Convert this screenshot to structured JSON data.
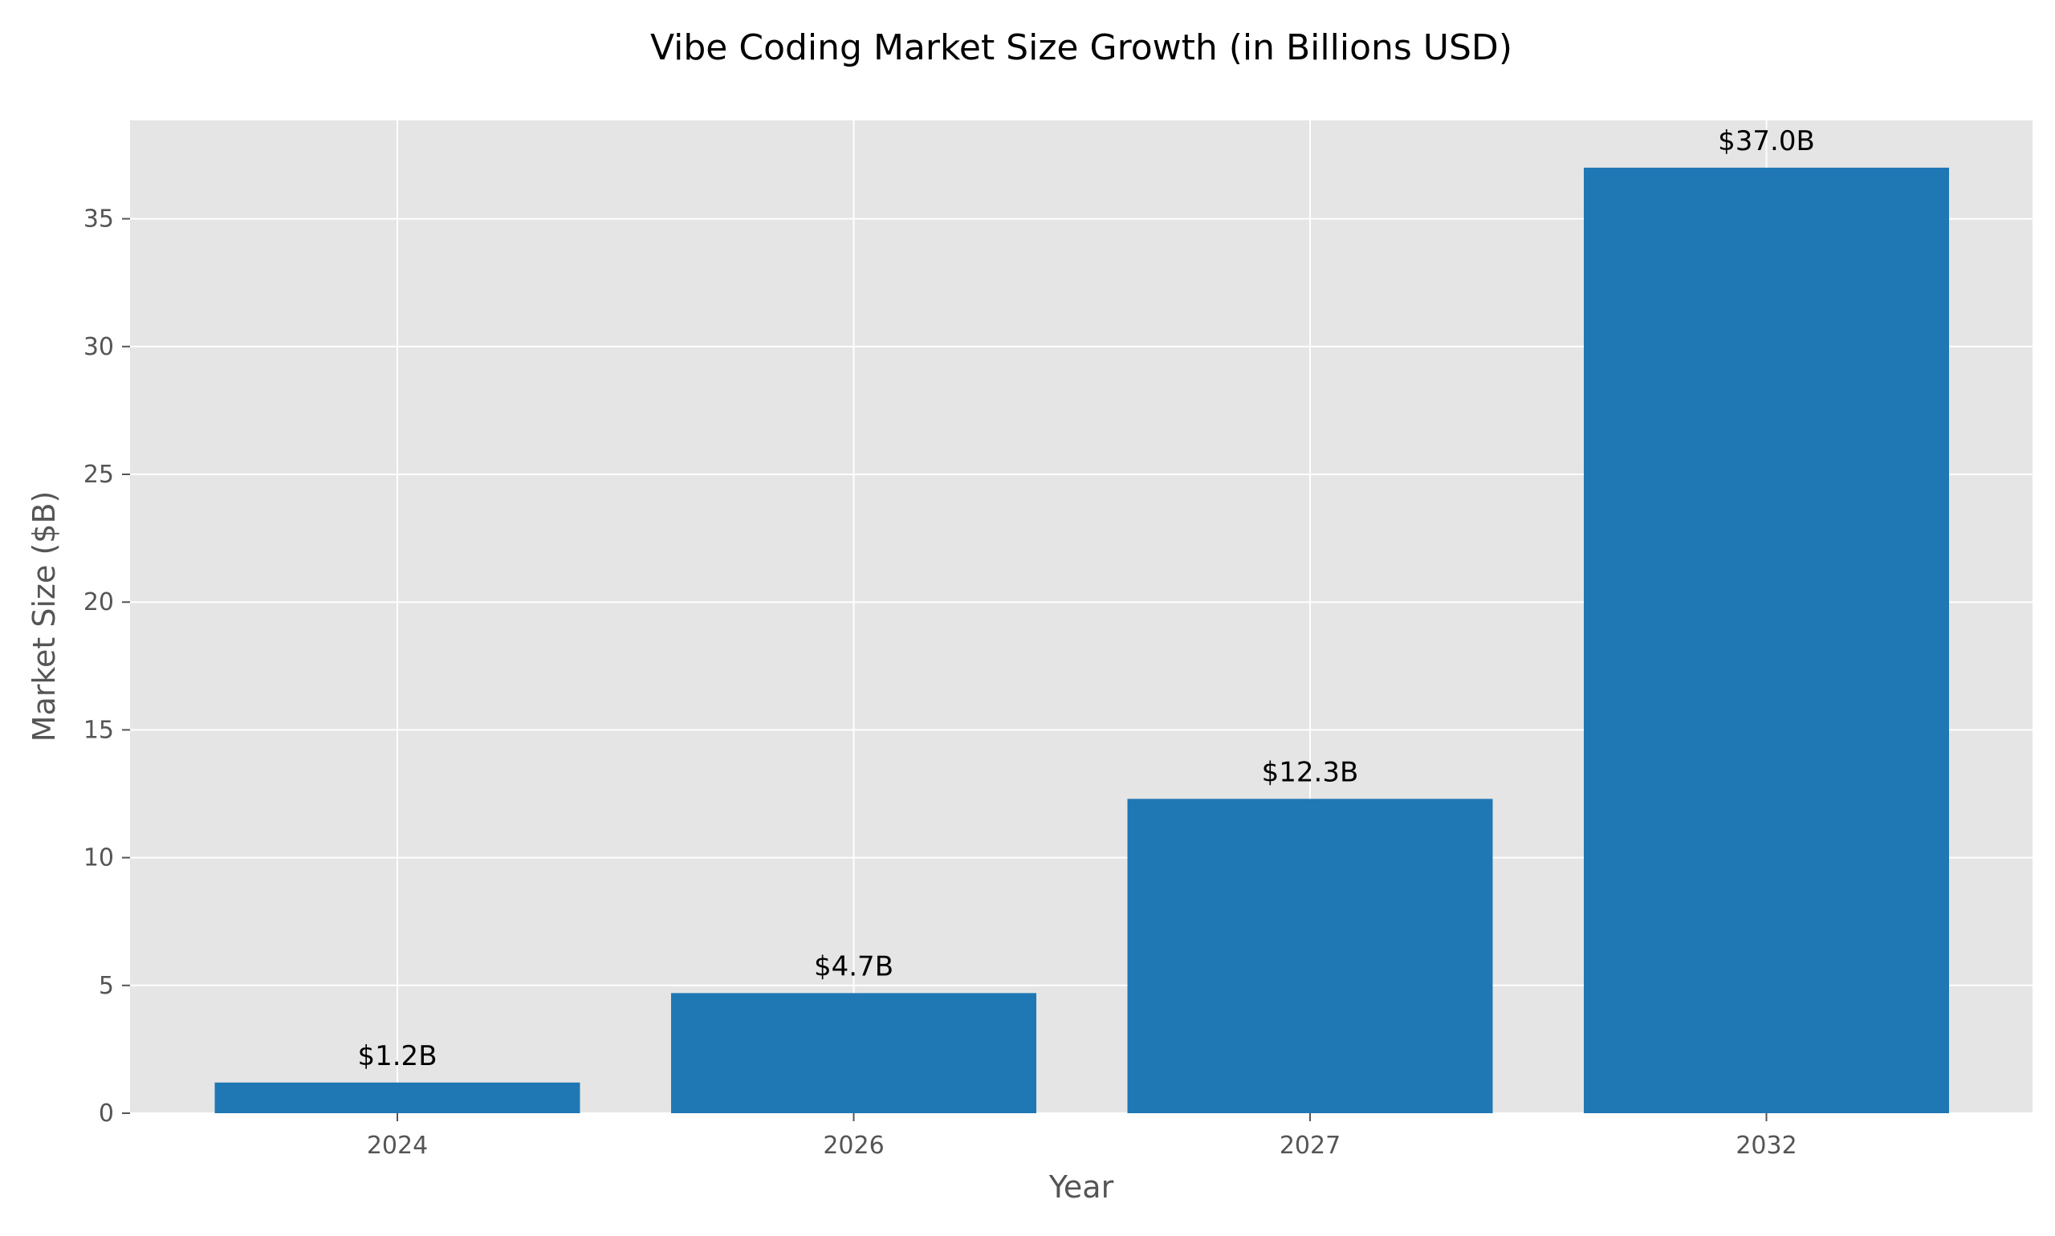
{
  "chart_data": {
    "type": "bar",
    "title": "Vibe Coding Market Size Growth (in Billions USD)",
    "xlabel": "Year",
    "ylabel": "Market Size ($B)",
    "categories": [
      "2024",
      "2026",
      "2027",
      "2032"
    ],
    "values": [
      1.2,
      4.7,
      12.3,
      37.0
    ],
    "data_labels": [
      "$1.2B",
      "$4.7B",
      "$12.3B",
      "$37.0B"
    ],
    "ylim": [
      0,
      38.85
    ],
    "yticks": [
      0,
      5,
      10,
      15,
      20,
      25,
      30,
      35
    ],
    "grid": true,
    "legend": "none",
    "colors": {
      "bar": "#1f77b4",
      "plot_background": "#e5e5e5",
      "grid": "#ffffff",
      "tick_text": "#555555"
    }
  }
}
